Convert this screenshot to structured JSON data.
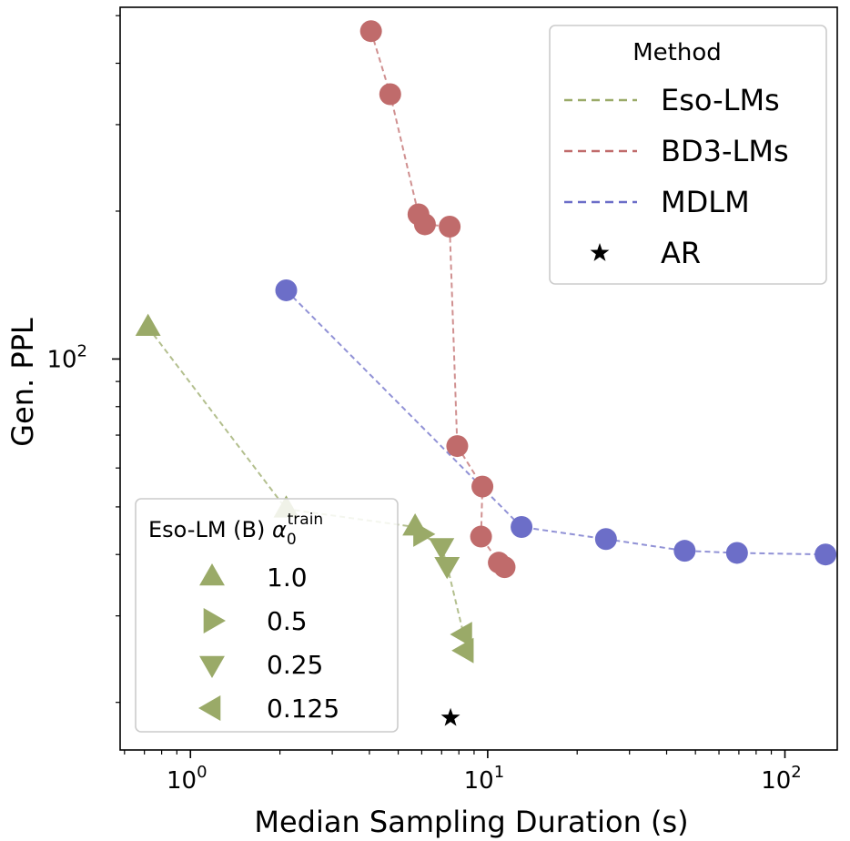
{
  "chart_data": {
    "type": "scatter",
    "xlabel": "Median Sampling Duration (s)",
    "ylabel": "Gen. PPL",
    "x_scale": "log",
    "y_scale": "log",
    "xlim": [
      0.58,
      150
    ],
    "ylim": [
      16,
      520
    ],
    "x_ticks": [
      {
        "value": 1,
        "label": "10",
        "exp": "0"
      },
      {
        "value": 10,
        "label": "10",
        "exp": "1"
      },
      {
        "value": 100,
        "label": "10",
        "exp": "2"
      }
    ],
    "y_ticks": [
      {
        "value": 100,
        "label": "10",
        "exp": "2"
      }
    ],
    "series": [
      {
        "name": "Eso-LMs",
        "color": "#9aaa68",
        "marker": "mixed",
        "points": [
          {
            "x": 0.72,
            "y": 116,
            "marker": "triangle-up"
          },
          {
            "x": 2.1,
            "y": 49.5,
            "marker": "triangle-up"
          },
          {
            "x": 5.7,
            "y": 45.5,
            "marker": "triangle-up"
          },
          {
            "x": 6.0,
            "y": 44.0,
            "marker": "triangle-right"
          },
          {
            "x": 7.0,
            "y": 41.5,
            "marker": "triangle-down"
          },
          {
            "x": 7.3,
            "y": 38.0,
            "marker": "triangle-down"
          },
          {
            "x": 8.3,
            "y": 27.5,
            "marker": "triangle-left"
          },
          {
            "x": 8.4,
            "y": 25.5,
            "marker": "triangle-left"
          }
        ]
      },
      {
        "name": "BD3-LMs",
        "color": "#c06b6b",
        "marker": "circle",
        "points": [
          {
            "x": 4.05,
            "y": 465
          },
          {
            "x": 4.7,
            "y": 346
          },
          {
            "x": 5.85,
            "y": 197
          },
          {
            "x": 6.15,
            "y": 188
          },
          {
            "x": 7.45,
            "y": 186
          },
          {
            "x": 7.9,
            "y": 66.5
          },
          {
            "x": 9.6,
            "y": 55.0
          },
          {
            "x": 9.5,
            "y": 43.5
          },
          {
            "x": 10.9,
            "y": 38.5
          },
          {
            "x": 11.4,
            "y": 37.7
          }
        ]
      },
      {
        "name": "MDLM",
        "color": "#6c6ec8",
        "marker": "circle",
        "points": [
          {
            "x": 2.1,
            "y": 138
          },
          {
            "x": 13.0,
            "y": 45.5
          },
          {
            "x": 25.0,
            "y": 43.0
          },
          {
            "x": 46.0,
            "y": 40.7
          },
          {
            "x": 69.0,
            "y": 40.3
          },
          {
            "x": 137.0,
            "y": 40.0
          }
        ]
      },
      {
        "name": "AR",
        "color": "#000000",
        "marker": "star",
        "points": [
          {
            "x": 7.5,
            "y": 18.6
          }
        ]
      }
    ],
    "legend_method": {
      "title": "Method",
      "placement": "top-right",
      "entries": [
        {
          "label": "Eso-LMs",
          "color": "#9aaa68",
          "symbol": "dash"
        },
        {
          "label": "BD3-LMs",
          "color": "#c06b6b",
          "symbol": "dash"
        },
        {
          "label": "MDLM",
          "color": "#6c6ec8",
          "symbol": "dash"
        },
        {
          "label": "AR",
          "color": "#000000",
          "symbol": "star"
        }
      ]
    },
    "legend_eso": {
      "title_prefix": "Eso-LM (B) ",
      "title_symbol": "α",
      "title_sub": "0",
      "title_sup": "train",
      "placement": "lower-left",
      "entries": [
        {
          "label": "1.0",
          "marker": "triangle-up"
        },
        {
          "label": "0.5",
          "marker": "triangle-right"
        },
        {
          "label": "0.25",
          "marker": "triangle-down"
        },
        {
          "label": "0.125",
          "marker": "triangle-left"
        }
      ]
    }
  }
}
